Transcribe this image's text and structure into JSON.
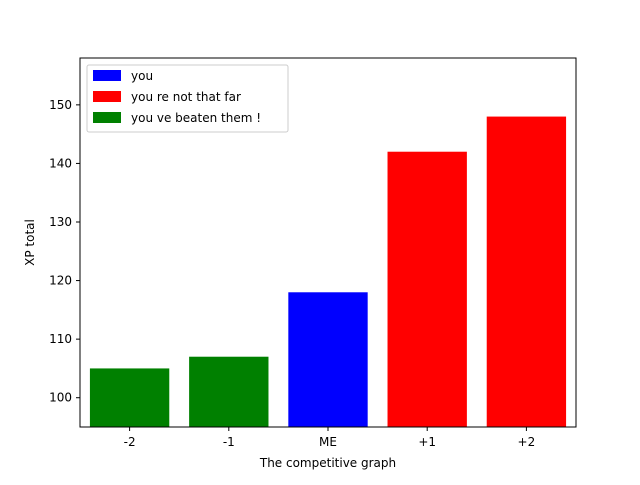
{
  "chart_data": {
    "type": "bar",
    "title": "",
    "xlabel": "The competitive graph",
    "ylabel": "XP total",
    "categories": [
      "-2",
      "-1",
      "ME",
      "+1",
      "+2"
    ],
    "values": [
      105,
      107,
      118,
      142,
      148
    ],
    "bar_colors": [
      "#008000",
      "#008000",
      "#0000ff",
      "#ff0000",
      "#ff0000"
    ],
    "ylim": [
      95,
      158
    ],
    "yticks": [
      100,
      110,
      120,
      130,
      140,
      150
    ],
    "grid": false,
    "legend": {
      "placement": "top-left",
      "entries": [
        {
          "label": "you",
          "color": "#0000ff"
        },
        {
          "label": "you re not that far",
          "color": "#ff0000"
        },
        {
          "label": "you ve beaten them !",
          "color": "#008000"
        }
      ]
    }
  }
}
